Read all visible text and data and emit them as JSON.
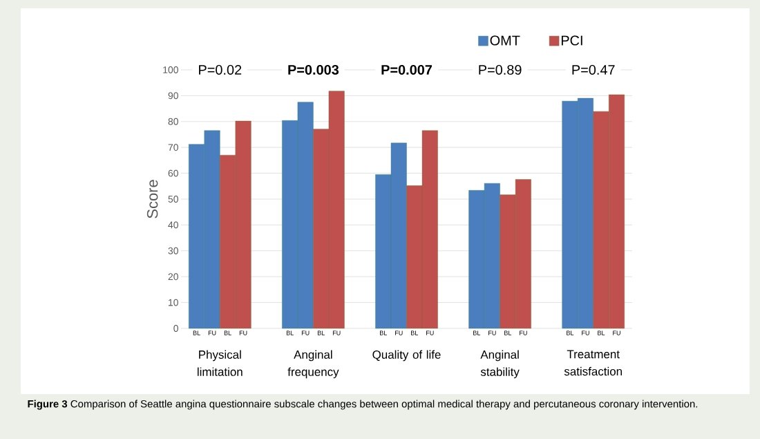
{
  "chart_data": {
    "type": "bar",
    "ylabel": "Score",
    "categories": [
      "BL",
      "FU",
      "BL",
      "FU",
      null,
      null,
      "BL",
      "FU",
      "BL",
      "FU",
      null,
      null,
      "BL",
      "FU",
      "BL",
      "FU",
      null,
      null,
      "BL",
      "FU",
      "BL",
      "FU",
      null,
      null,
      "BL",
      "FU",
      "BL",
      "FU"
    ],
    "series": [
      {
        "name": "OMT",
        "color": "#4a7ebf",
        "values": [
          71.2,
          76.5,
          null,
          null,
          null,
          null,
          80.4,
          87.5,
          null,
          null,
          null,
          null,
          59.5,
          71.7,
          null,
          null,
          null,
          null,
          53.4,
          56.1,
          null,
          null,
          null,
          null,
          87.9,
          89.0,
          null,
          null
        ]
      },
      {
        "name": "PCI",
        "color": "#c0504d",
        "values": [
          null,
          null,
          67.0,
          80.2,
          null,
          null,
          null,
          null,
          77.1,
          91.8,
          null,
          null,
          null,
          null,
          55.2,
          76.5,
          null,
          null,
          null,
          null,
          51.7,
          57.6,
          null,
          null,
          null,
          null,
          83.9,
          90.4
        ]
      }
    ],
    "ylim": [
      0,
      100
    ],
    "yticks": [
      0,
      10,
      20,
      30,
      40,
      50,
      60,
      70,
      80,
      90,
      100
    ],
    "grid": "y",
    "legend": "top right",
    "annotations": [
      "Physical limitation",
      "Anginal frequency",
      "Quality of life",
      "Anginal stability",
      "Treatment satisfaction",
      "P=0.02",
      "**P=0.003**",
      "**P=0.007**",
      "P=0.89",
      "P=0.47",
      "**Figure 3** Comparison of Seattle angina questionnaire subscale changes between optimal medical therapy and percutaneous coronary intervention."
    ]
  }
}
